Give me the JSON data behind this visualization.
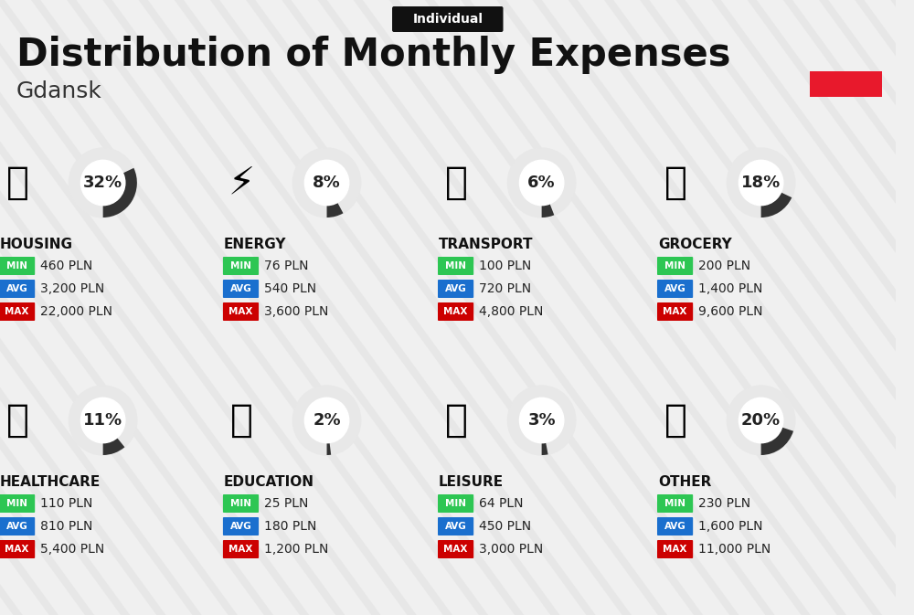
{
  "title": "Distribution of Monthly Expenses",
  "subtitle": "Individual",
  "city": "Gdansk",
  "bg_color": "#f0f0f0",
  "title_color": "#111111",
  "city_color": "#333333",
  "red_rect_color": "#e8192c",
  "categories": [
    {
      "name": "HOUSING",
      "percent": 32,
      "min": "460 PLN",
      "avg": "3,200 PLN",
      "max": "22,000 PLN",
      "row": 0,
      "col": 0
    },
    {
      "name": "ENERGY",
      "percent": 8,
      "min": "76 PLN",
      "avg": "540 PLN",
      "max": "3,600 PLN",
      "row": 0,
      "col": 1
    },
    {
      "name": "TRANSPORT",
      "percent": 6,
      "min": "100 PLN",
      "avg": "720 PLN",
      "max": "4,800 PLN",
      "row": 0,
      "col": 2
    },
    {
      "name": "GROCERY",
      "percent": 18,
      "min": "200 PLN",
      "avg": "1,400 PLN",
      "max": "9,600 PLN",
      "row": 0,
      "col": 3
    },
    {
      "name": "HEALTHCARE",
      "percent": 11,
      "min": "110 PLN",
      "avg": "810 PLN",
      "max": "5,400 PLN",
      "row": 1,
      "col": 0
    },
    {
      "name": "EDUCATION",
      "percent": 2,
      "min": "25 PLN",
      "avg": "180 PLN",
      "max": "1,200 PLN",
      "row": 1,
      "col": 1
    },
    {
      "name": "LEISURE",
      "percent": 3,
      "min": "64 PLN",
      "avg": "450 PLN",
      "max": "3,000 PLN",
      "row": 1,
      "col": 2
    },
    {
      "name": "OTHER",
      "percent": 20,
      "min": "230 PLN",
      "avg": "1,600 PLN",
      "max": "11,000 PLN",
      "row": 1,
      "col": 3
    }
  ],
  "min_color": "#2dc653",
  "avg_color": "#1a6fce",
  "max_color": "#cc0000",
  "label_color": "#ffffff",
  "value_color": "#222222",
  "circle_bg": "#e8e8e8",
  "circle_arc": "#333333",
  "percent_color": "#222222",
  "cat_name_color": "#111111",
  "stripe_color": "#d8d8d8"
}
